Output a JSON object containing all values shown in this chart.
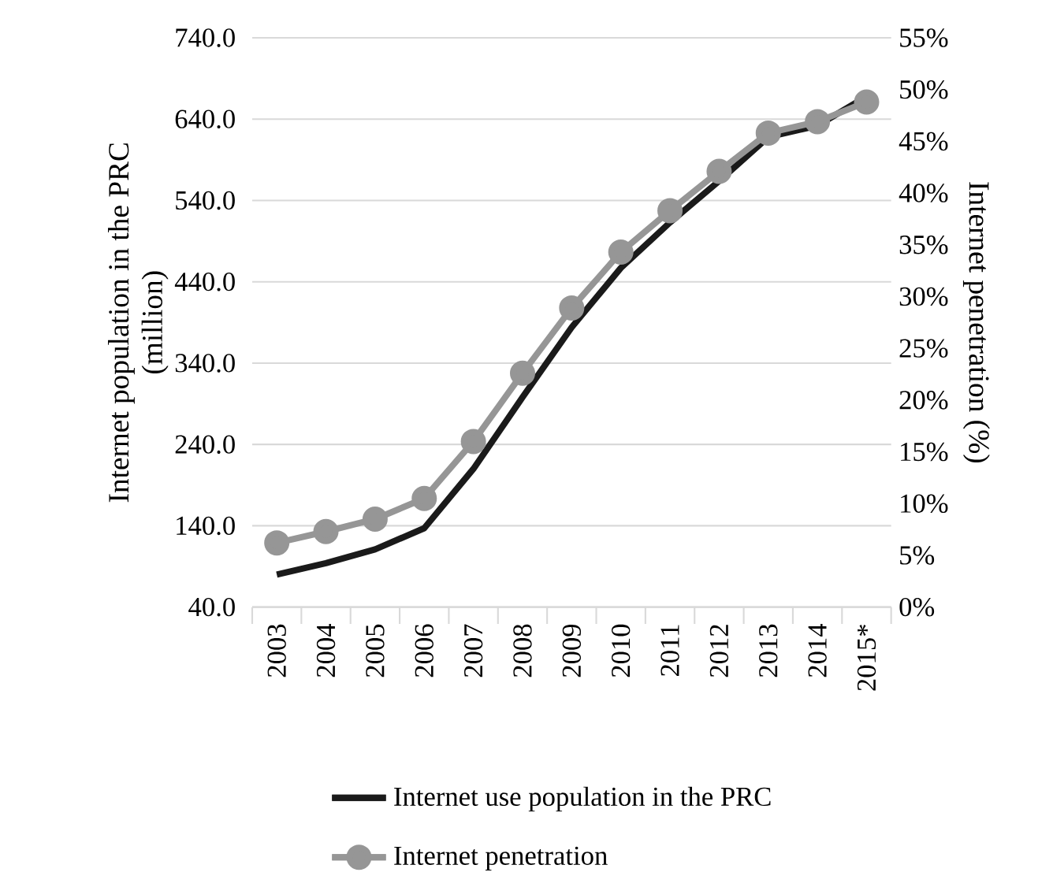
{
  "chart_data": {
    "type": "line",
    "categories": [
      "2003",
      "2004",
      "2005",
      "2006",
      "2007",
      "2008",
      "2009",
      "2010",
      "2011",
      "2012",
      "2013",
      "2014",
      "2015*"
    ],
    "series": [
      {
        "name": "Internet use population in the PRC",
        "color": "#1a1a1a",
        "marker": "none",
        "values": [
          80,
          94,
          111,
          137,
          210,
          298,
          384,
          457,
          513,
          564,
          618,
          632,
          668
        ]
      },
      {
        "name": "Internet penetration",
        "color": "#969696",
        "marker": "circle",
        "axis": "y2",
        "values": [
          6.2,
          7.3,
          8.5,
          10.5,
          16.0,
          22.6,
          28.9,
          34.3,
          38.3,
          42.1,
          45.8,
          46.9,
          48.8
        ]
      }
    ],
    "ylabel": "Internet population in the PRC (million)",
    "y2label": "Internet penetration (%)",
    "ylim": [
      40,
      740
    ],
    "yticks": [
      {
        "value": 40,
        "label": "40.0"
      },
      {
        "value": 140,
        "label": "140.0"
      },
      {
        "value": 240,
        "label": "240.0"
      },
      {
        "value": 340,
        "label": "340.0"
      },
      {
        "value": 440,
        "label": "440.0"
      },
      {
        "value": 540,
        "label": "540.0"
      },
      {
        "value": 640,
        "label": "640.0"
      },
      {
        "value": 740,
        "label": "740.0"
      }
    ],
    "y2lim": [
      0,
      55
    ],
    "y2ticks": [
      {
        "value": 0,
        "label": "0%"
      },
      {
        "value": 5,
        "label": "5%"
      },
      {
        "value": 10,
        "label": "10%"
      },
      {
        "value": 15,
        "label": "15%"
      },
      {
        "value": 20,
        "label": "20%"
      },
      {
        "value": 25,
        "label": "25%"
      },
      {
        "value": 30,
        "label": "30%"
      },
      {
        "value": 35,
        "label": "35%"
      },
      {
        "value": 40,
        "label": "40%"
      },
      {
        "value": 45,
        "label": "45%"
      },
      {
        "value": 50,
        "label": "50%"
      },
      {
        "value": 55,
        "label": "55%"
      }
    ],
    "grid": "y",
    "legend": "bottom"
  }
}
